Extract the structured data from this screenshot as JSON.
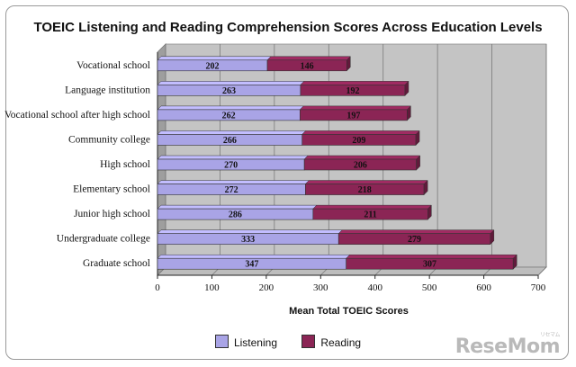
{
  "chart_data": {
    "type": "bar",
    "orientation": "horizontal",
    "stacked": true,
    "title": "TOEIC Listening and Reading Comprehension Scores Across Education Levels",
    "xlabel": "Mean Total TOEIC Scores",
    "ylabel": "",
    "xlim": [
      0,
      700
    ],
    "xticks": [
      0,
      100,
      200,
      300,
      400,
      500,
      600,
      700
    ],
    "grid": true,
    "legend_position": "bottom",
    "categories": [
      "Vocational school",
      "Language institution",
      "Vocational school after high school",
      "Community college",
      "High school",
      "Elementary school",
      "Junior high school",
      "Undergraduate college",
      "Graduate school"
    ],
    "series": [
      {
        "name": "Listening",
        "color": "#a9a4e6",
        "values": [
          202,
          263,
          262,
          266,
          270,
          272,
          286,
          333,
          347
        ]
      },
      {
        "name": "Reading",
        "color": "#8b2555",
        "values": [
          146,
          192,
          197,
          209,
          206,
          218,
          211,
          279,
          307
        ]
      }
    ]
  },
  "watermark": {
    "text": "ReseMom",
    "small": "リセマム"
  }
}
